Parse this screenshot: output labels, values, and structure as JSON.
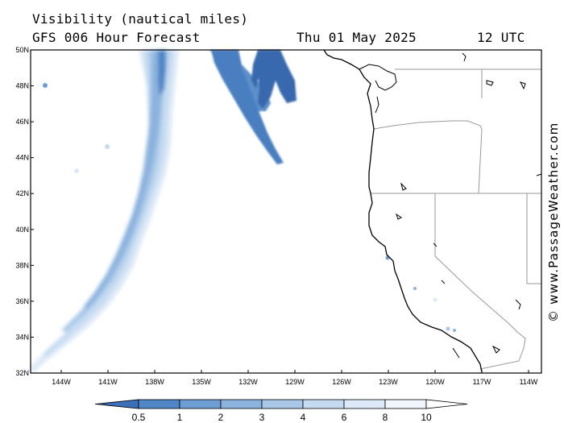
{
  "header": {
    "title": "Visibility (nautical miles)",
    "subtitle": "GFS 006 Hour Forecast",
    "date": "Thu 01 May 2025",
    "hour": "12 UTC"
  },
  "copyright": "© www.PassageWeather.com",
  "map": {
    "lon_range": [
      -146,
      -113.5
    ],
    "lat_range": [
      32,
      50
    ],
    "lat_ticks": [
      "50N",
      "48N",
      "46N",
      "44N",
      "42N",
      "40N",
      "38N",
      "36N",
      "34N",
      "32N"
    ],
    "lon_ticks": [
      "144W",
      "141W",
      "138W",
      "135W",
      "132W",
      "129W",
      "126W",
      "123W",
      "120W",
      "117W",
      "114W"
    ],
    "land_color": "#ffffff",
    "coast_color": "#000000",
    "border_color": "#999999"
  },
  "colorbar": {
    "labels": [
      "0.5",
      "1",
      "2",
      "3",
      "4",
      "6",
      "8",
      "10"
    ],
    "colors": [
      "#3b6fb6",
      "#4f86c6",
      "#6d9dd3",
      "#8cb3de",
      "#a9c8e8",
      "#c5dbf1",
      "#dde9f7",
      "#f1f6fc"
    ]
  }
}
